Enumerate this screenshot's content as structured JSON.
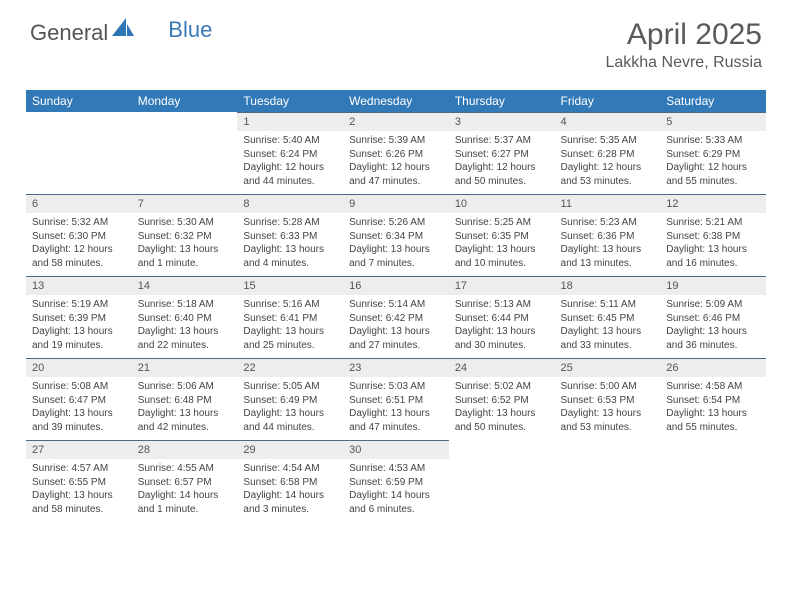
{
  "brand": {
    "part1": "General",
    "part2": "Blue"
  },
  "title": "April 2025",
  "location": "Lakkha Nevre, Russia",
  "colors": {
    "header_bg": "#3279b7",
    "header_text": "#ffffff",
    "daynum_bg": "#ededed",
    "border_top": "#4a6a8a",
    "text": "#444444",
    "title_color": "#5a5a5a"
  },
  "day_headers": [
    "Sunday",
    "Monday",
    "Tuesday",
    "Wednesday",
    "Thursday",
    "Friday",
    "Saturday"
  ],
  "weeks": [
    [
      {
        "n": "",
        "sunrise": "",
        "sunset": "",
        "daylight": ""
      },
      {
        "n": "",
        "sunrise": "",
        "sunset": "",
        "daylight": ""
      },
      {
        "n": "1",
        "sunrise": "Sunrise: 5:40 AM",
        "sunset": "Sunset: 6:24 PM",
        "daylight": "Daylight: 12 hours and 44 minutes."
      },
      {
        "n": "2",
        "sunrise": "Sunrise: 5:39 AM",
        "sunset": "Sunset: 6:26 PM",
        "daylight": "Daylight: 12 hours and 47 minutes."
      },
      {
        "n": "3",
        "sunrise": "Sunrise: 5:37 AM",
        "sunset": "Sunset: 6:27 PM",
        "daylight": "Daylight: 12 hours and 50 minutes."
      },
      {
        "n": "4",
        "sunrise": "Sunrise: 5:35 AM",
        "sunset": "Sunset: 6:28 PM",
        "daylight": "Daylight: 12 hours and 53 minutes."
      },
      {
        "n": "5",
        "sunrise": "Sunrise: 5:33 AM",
        "sunset": "Sunset: 6:29 PM",
        "daylight": "Daylight: 12 hours and 55 minutes."
      }
    ],
    [
      {
        "n": "6",
        "sunrise": "Sunrise: 5:32 AM",
        "sunset": "Sunset: 6:30 PM",
        "daylight": "Daylight: 12 hours and 58 minutes."
      },
      {
        "n": "7",
        "sunrise": "Sunrise: 5:30 AM",
        "sunset": "Sunset: 6:32 PM",
        "daylight": "Daylight: 13 hours and 1 minute."
      },
      {
        "n": "8",
        "sunrise": "Sunrise: 5:28 AM",
        "sunset": "Sunset: 6:33 PM",
        "daylight": "Daylight: 13 hours and 4 minutes."
      },
      {
        "n": "9",
        "sunrise": "Sunrise: 5:26 AM",
        "sunset": "Sunset: 6:34 PM",
        "daylight": "Daylight: 13 hours and 7 minutes."
      },
      {
        "n": "10",
        "sunrise": "Sunrise: 5:25 AM",
        "sunset": "Sunset: 6:35 PM",
        "daylight": "Daylight: 13 hours and 10 minutes."
      },
      {
        "n": "11",
        "sunrise": "Sunrise: 5:23 AM",
        "sunset": "Sunset: 6:36 PM",
        "daylight": "Daylight: 13 hours and 13 minutes."
      },
      {
        "n": "12",
        "sunrise": "Sunrise: 5:21 AM",
        "sunset": "Sunset: 6:38 PM",
        "daylight": "Daylight: 13 hours and 16 minutes."
      }
    ],
    [
      {
        "n": "13",
        "sunrise": "Sunrise: 5:19 AM",
        "sunset": "Sunset: 6:39 PM",
        "daylight": "Daylight: 13 hours and 19 minutes."
      },
      {
        "n": "14",
        "sunrise": "Sunrise: 5:18 AM",
        "sunset": "Sunset: 6:40 PM",
        "daylight": "Daylight: 13 hours and 22 minutes."
      },
      {
        "n": "15",
        "sunrise": "Sunrise: 5:16 AM",
        "sunset": "Sunset: 6:41 PM",
        "daylight": "Daylight: 13 hours and 25 minutes."
      },
      {
        "n": "16",
        "sunrise": "Sunrise: 5:14 AM",
        "sunset": "Sunset: 6:42 PM",
        "daylight": "Daylight: 13 hours and 27 minutes."
      },
      {
        "n": "17",
        "sunrise": "Sunrise: 5:13 AM",
        "sunset": "Sunset: 6:44 PM",
        "daylight": "Daylight: 13 hours and 30 minutes."
      },
      {
        "n": "18",
        "sunrise": "Sunrise: 5:11 AM",
        "sunset": "Sunset: 6:45 PM",
        "daylight": "Daylight: 13 hours and 33 minutes."
      },
      {
        "n": "19",
        "sunrise": "Sunrise: 5:09 AM",
        "sunset": "Sunset: 6:46 PM",
        "daylight": "Daylight: 13 hours and 36 minutes."
      }
    ],
    [
      {
        "n": "20",
        "sunrise": "Sunrise: 5:08 AM",
        "sunset": "Sunset: 6:47 PM",
        "daylight": "Daylight: 13 hours and 39 minutes."
      },
      {
        "n": "21",
        "sunrise": "Sunrise: 5:06 AM",
        "sunset": "Sunset: 6:48 PM",
        "daylight": "Daylight: 13 hours and 42 minutes."
      },
      {
        "n": "22",
        "sunrise": "Sunrise: 5:05 AM",
        "sunset": "Sunset: 6:49 PM",
        "daylight": "Daylight: 13 hours and 44 minutes."
      },
      {
        "n": "23",
        "sunrise": "Sunrise: 5:03 AM",
        "sunset": "Sunset: 6:51 PM",
        "daylight": "Daylight: 13 hours and 47 minutes."
      },
      {
        "n": "24",
        "sunrise": "Sunrise: 5:02 AM",
        "sunset": "Sunset: 6:52 PM",
        "daylight": "Daylight: 13 hours and 50 minutes."
      },
      {
        "n": "25",
        "sunrise": "Sunrise: 5:00 AM",
        "sunset": "Sunset: 6:53 PM",
        "daylight": "Daylight: 13 hours and 53 minutes."
      },
      {
        "n": "26",
        "sunrise": "Sunrise: 4:58 AM",
        "sunset": "Sunset: 6:54 PM",
        "daylight": "Daylight: 13 hours and 55 minutes."
      }
    ],
    [
      {
        "n": "27",
        "sunrise": "Sunrise: 4:57 AM",
        "sunset": "Sunset: 6:55 PM",
        "daylight": "Daylight: 13 hours and 58 minutes."
      },
      {
        "n": "28",
        "sunrise": "Sunrise: 4:55 AM",
        "sunset": "Sunset: 6:57 PM",
        "daylight": "Daylight: 14 hours and 1 minute."
      },
      {
        "n": "29",
        "sunrise": "Sunrise: 4:54 AM",
        "sunset": "Sunset: 6:58 PM",
        "daylight": "Daylight: 14 hours and 3 minutes."
      },
      {
        "n": "30",
        "sunrise": "Sunrise: 4:53 AM",
        "sunset": "Sunset: 6:59 PM",
        "daylight": "Daylight: 14 hours and 6 minutes."
      },
      {
        "n": "",
        "sunrise": "",
        "sunset": "",
        "daylight": ""
      },
      {
        "n": "",
        "sunrise": "",
        "sunset": "",
        "daylight": ""
      },
      {
        "n": "",
        "sunrise": "",
        "sunset": "",
        "daylight": ""
      }
    ]
  ]
}
